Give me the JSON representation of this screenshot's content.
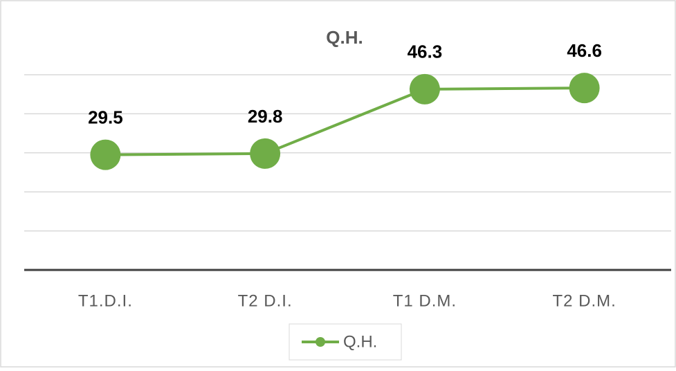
{
  "chart_data": {
    "type": "line",
    "title": "Q.H.",
    "categories": [
      "T1.D.I.",
      "T2 D.I.",
      "T1 D.M.",
      "T2 D.M."
    ],
    "series": [
      {
        "name": "Q.H.",
        "color": "#70ad47",
        "values": [
          29.5,
          29.8,
          46.3,
          46.6
        ]
      }
    ],
    "ylim": [
      0,
      50
    ],
    "yticks": [
      0,
      10,
      20,
      30,
      40,
      50
    ],
    "grid": true,
    "legend": "bottom"
  }
}
